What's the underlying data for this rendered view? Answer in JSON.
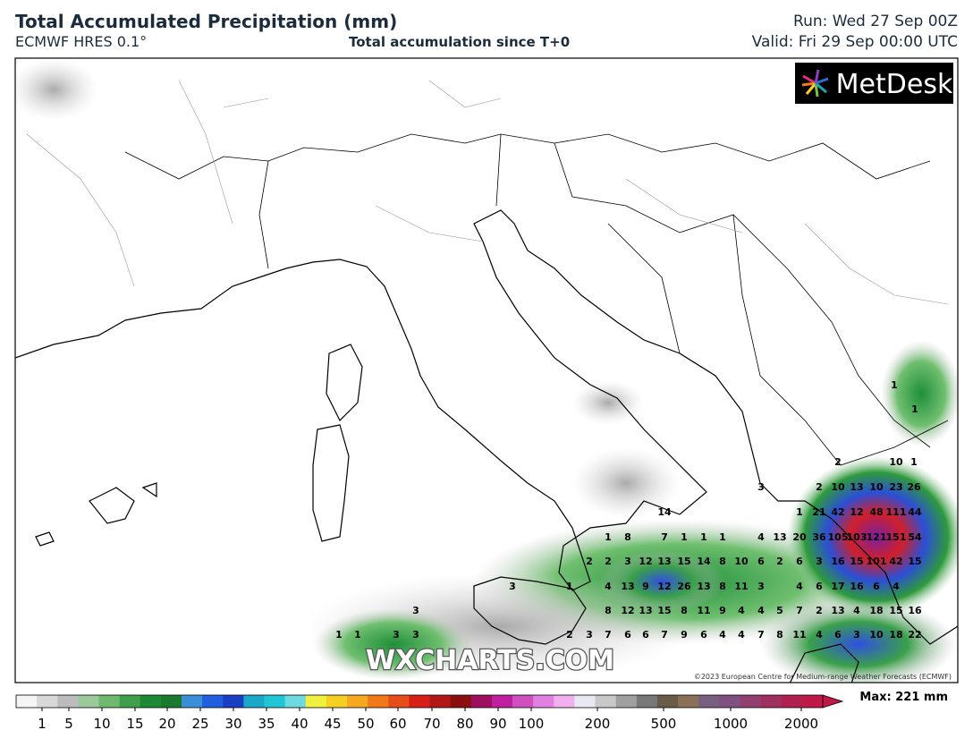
{
  "header": {
    "title": "Total Accumulated Precipitation (mm)",
    "model": "ECMWF HRES 0.1°",
    "subtitle": "Total accumulation since T+0",
    "run": "Run: Wed 27 Sep 00Z",
    "valid": "Valid: Fri 29 Sep 00:00 UTC"
  },
  "logo": "MetDesk",
  "watermark": "WXCHARTS.COM",
  "copyright": "©2023 European Centre for Medium-range Weather Forecasts (ECMWF)",
  "map_labels": [
    [
      1
    ],
    [
      1
    ],
    [
      2,
      10,
      1
    ],
    [
      3,
      2,
      10,
      13,
      10,
      23,
      26
    ],
    [
      14,
      1,
      21,
      42,
      12,
      48,
      111,
      44
    ],
    [
      1,
      8,
      7,
      1,
      1,
      1,
      4,
      13,
      20,
      36,
      105,
      103,
      121,
      151,
      54
    ],
    [
      2,
      2,
      3,
      12,
      13,
      15,
      14,
      8,
      10,
      6,
      2,
      6,
      3,
      16,
      15,
      101,
      42,
      15
    ],
    [
      3,
      1,
      4,
      13,
      9,
      12,
      26,
      13,
      8,
      11,
      3,
      4,
      6,
      17,
      16,
      6,
      4
    ],
    [
      3,
      8,
      12,
      13,
      15,
      8,
      11,
      9,
      4,
      4,
      5,
      7,
      2,
      13,
      4,
      18,
      15,
      16
    ],
    [
      1,
      1,
      3,
      3,
      2,
      3,
      7,
      6,
      6,
      7,
      9,
      6,
      4,
      4,
      7,
      8,
      11,
      4,
      6,
      3,
      10,
      18,
      22
    ]
  ],
  "colorbar": {
    "ticks": [
      1,
      5,
      10,
      15,
      20,
      25,
      30,
      35,
      40,
      45,
      50,
      60,
      70,
      80,
      90,
      100,
      200,
      500,
      1000,
      2000
    ],
    "max_label": "Max: 221 mm"
  }
}
